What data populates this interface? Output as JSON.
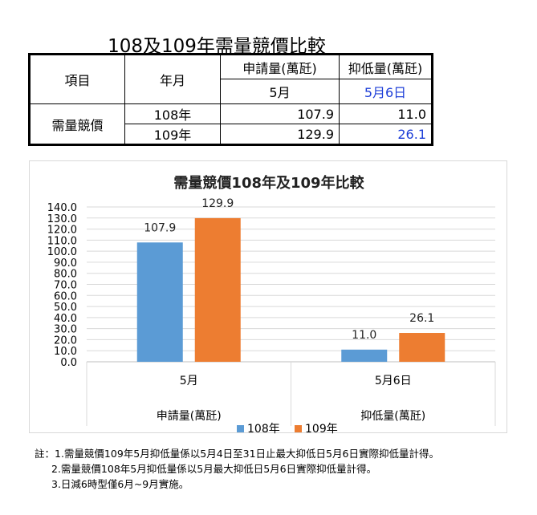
{
  "page_title": "108及109年需量競價比較",
  "table": {
    "header_item": "項目",
    "header_year_month": "年月",
    "col1_header": "申請量(萬瓩)",
    "col2_header": "抑低量(萬瓩)",
    "col1_sub": "5月",
    "col2_sub": "5月6日",
    "row_label": "需量競價",
    "rows": [
      {
        "year": "108年",
        "v1": "107.9",
        "v2": "11.0"
      },
      {
        "year": "109年",
        "v1": "129.9",
        "v2": "26.1"
      }
    ]
  },
  "chart_data": {
    "type": "bar",
    "title": "需量競價108年及109年比較",
    "categories": [
      "5月",
      "5月6日"
    ],
    "category_groups": [
      "申請量(萬瓩)",
      "抑低量(萬瓩)"
    ],
    "series": [
      {
        "name": "108年",
        "values": [
          107.9,
          11.0
        ],
        "labels": [
          "107.9",
          "11.0"
        ],
        "color": "#5b9bd5"
      },
      {
        "name": "109年",
        "values": [
          129.9,
          26.1
        ],
        "labels": [
          "129.9",
          "26.1"
        ],
        "color": "#ed7d31"
      }
    ],
    "ylim": [
      0,
      140
    ],
    "yticks": [
      "0.0",
      "10.0",
      "20.0",
      "30.0",
      "40.0",
      "50.0",
      "60.0",
      "70.0",
      "80.0",
      "90.0",
      "100.0",
      "110.0",
      "120.0",
      "130.0",
      "140.0"
    ],
    "grid": true,
    "legend": "bottom"
  },
  "notes": [
    "註：1.需量競價109年5月抑低量係以5月4日至31日止最大抑低日5月6日實際抑低量計得。",
    "2.需量競價108年5月抑低量係以5月最大抑低日5月6日實際抑低量計得。",
    "3.日減6時型僅6月~9月實施。"
  ]
}
